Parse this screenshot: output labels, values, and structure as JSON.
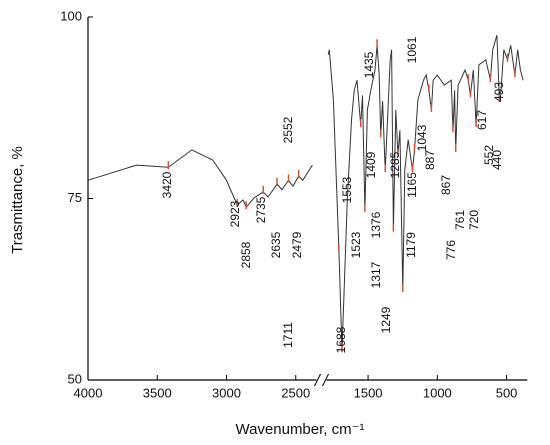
{
  "chart_data": {
    "type": "line",
    "xlabel": "Wavenumber, cm⁻¹",
    "ylabel": "Trasmittance, %",
    "xlim": [
      4000,
      350
    ],
    "x_break": [
      2350,
      1800
    ],
    "xticks": [
      4000,
      3500,
      3000,
      2500,
      1500,
      1000,
      500
    ],
    "ylim": [
      50,
      100
    ],
    "yticks": [
      50,
      75,
      100
    ],
    "color": "#333333",
    "peak_color": "#d0503a",
    "series": [
      {
        "x": [
          4000,
          3650,
          3420,
          3250,
          3100,
          3000,
          2923,
          2880,
          2858,
          2800,
          2735,
          2700,
          2635,
          2600,
          2552,
          2520,
          2479,
          2450,
          2380,
          2000,
          1788,
          1780,
          1750,
          1711,
          1688,
          1670,
          1650,
          1620,
          1600,
          1580,
          1553,
          1540,
          1523,
          1505,
          1480,
          1450,
          1435,
          1420,
          1409,
          1395,
          1376,
          1360,
          1340,
          1330,
          1317,
          1300,
          1285,
          1270,
          1249,
          1235,
          1210,
          1179,
          1165,
          1140,
          1100,
          1080,
          1061,
          1043,
          1030,
          1000,
          950,
          900,
          887,
          875,
          867,
          850,
          800,
          776,
          761,
          740,
          720,
          700,
          650,
          617,
          600,
          570,
          552,
          540,
          520,
          493,
          470,
          440,
          420,
          400,
          380
        ],
        "values": [
          77.5,
          79.6,
          79.3,
          81.7,
          80.3,
          77.5,
          74.1,
          74.8,
          73.8,
          75.1,
          75.9,
          75.2,
          77.0,
          76.2,
          77.5,
          76.7,
          78.1,
          77.5,
          79.6,
          null,
          94.8,
          95.5,
          88.6,
          67.9,
          54.1,
          63.8,
          74.8,
          85.8,
          89.9,
          91.3,
          85.1,
          89.2,
          73.4,
          87.2,
          89.9,
          92.7,
          96.1,
          92.0,
          83.7,
          88.4,
          78.9,
          85.8,
          94.1,
          95.5,
          70.7,
          87.2,
          81.0,
          84.4,
          62.4,
          78.9,
          83.1,
          78.9,
          81.7,
          88.6,
          91.3,
          92.0,
          89.9,
          87.2,
          91.3,
          92.0,
          90.6,
          91.3,
          84.4,
          89.9,
          81.7,
          90.6,
          92.7,
          91.3,
          89.2,
          92.7,
          85.1,
          93.4,
          94.1,
          91.3,
          95.5,
          97.5,
          88.6,
          89.9,
          95.5,
          94.1,
          96.1,
          92.0,
          95.5,
          92.7,
          91.3
        ]
      }
    ],
    "peaks": [
      3420,
      2923,
      2858,
      2735,
      2635,
      2552,
      2479,
      1711,
      1688,
      1553,
      1523,
      1435,
      1409,
      1376,
      1317,
      1285,
      1249,
      1179,
      1165,
      1061,
      1043,
      887,
      867,
      776,
      761,
      720,
      617,
      552,
      440,
      493
    ]
  }
}
